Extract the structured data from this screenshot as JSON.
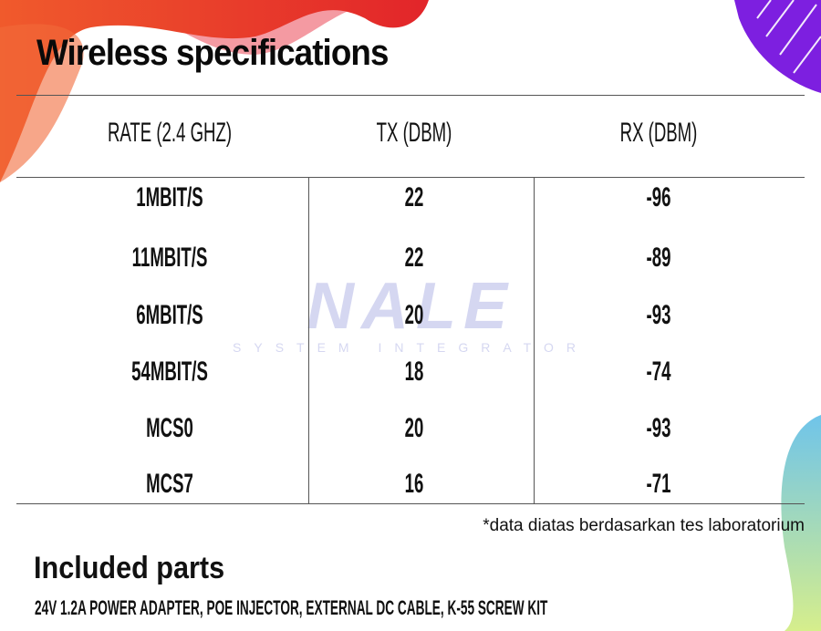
{
  "title": "Wireless specifications",
  "table": {
    "headers": [
      "RATE (2.4 GHZ)",
      "TX (DBM)",
      "RX (DBM)"
    ],
    "rows": [
      [
        "1MBIT/S",
        "22",
        "-96"
      ],
      [
        "11MBIT/S",
        "22",
        "-89"
      ],
      [
        "6MBIT/S",
        "20",
        "-93"
      ],
      [
        "54MBIT/S",
        "18",
        "-74"
      ],
      [
        "MCS0",
        "20",
        "-93"
      ],
      [
        "MCS7",
        "16",
        "-71"
      ]
    ]
  },
  "note": "*data diatas berdasarkan tes laboratorium",
  "included": {
    "title": "Included parts",
    "text": "24V 1.2A POWER ADAPTER, POE INJECTOR, EXTERNAL DC CABLE, K-55 SCREW KIT"
  },
  "watermark": {
    "logo": "NALE",
    "tagline": "SYSTEM INTEGRATOR"
  },
  "colors": {
    "red": "#e53a2c",
    "pink": "#f49aa2",
    "purple": "#7d1fe0",
    "teal": "#7cc9e6",
    "green": "#c8e89a"
  }
}
